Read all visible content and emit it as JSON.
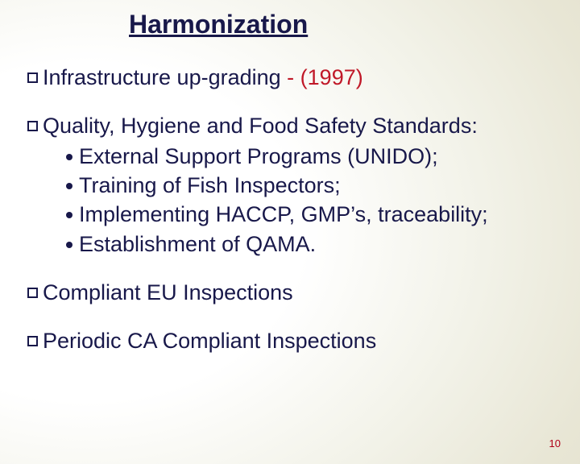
{
  "slide": {
    "title": "Harmonization",
    "items": [
      {
        "label_prefix": "Infrastructure up-grading ",
        "label_year": "- (1997)",
        "subs": []
      },
      {
        "label_prefix": "Quality, Hygiene and Food Safety Standards:",
        "label_year": "",
        "subs": [
          "External Support Programs (UNIDO);",
          "Training of Fish Inspectors;",
          "Implementing HACCP, GMP’s, traceability;",
          "Establishment of QAMA."
        ]
      },
      {
        "label_prefix": "Compliant EU Inspections",
        "label_year": "",
        "subs": []
      },
      {
        "label_prefix": "Periodic CA Compliant Inspections",
        "label_year": "",
        "subs": []
      }
    ],
    "page_number": "10"
  },
  "style": {
    "title_color": "#18184a",
    "text_color": "#18184a",
    "year_color": "#c01828",
    "pagenum_color": "#b00018",
    "title_fontsize": 32,
    "body_fontsize": 27,
    "background_inner": "#ffffff",
    "background_outer": "#e0ddc7"
  }
}
